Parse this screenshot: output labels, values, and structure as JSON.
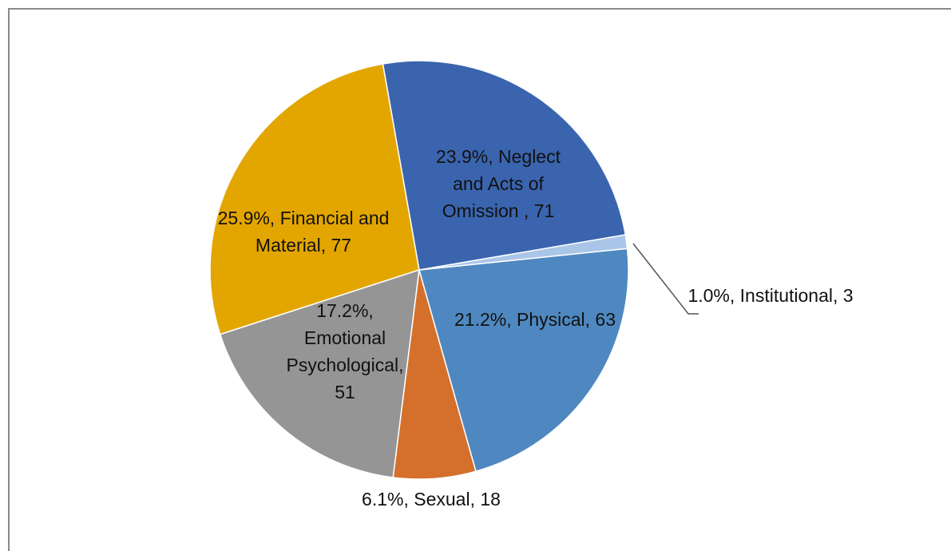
{
  "chart_data": {
    "type": "pie",
    "values": [
      71,
      3,
      63,
      18,
      51,
      77
    ],
    "value_labels": [
      "23.9%, Neglect and Acts of Omission , 71",
      "1.0%, Institutional, 3",
      "21.2%, Physical, 63",
      "6.1%, Sexual, 18",
      "17.2%, Emotional Psychological, 51",
      "25.9%, Financial and Material, 77"
    ],
    "colors": [
      "#3a64ae",
      "#a9c6e8",
      "#4f88c0",
      "#d4702b",
      "#959595",
      "#e3a600"
    ]
  }
}
